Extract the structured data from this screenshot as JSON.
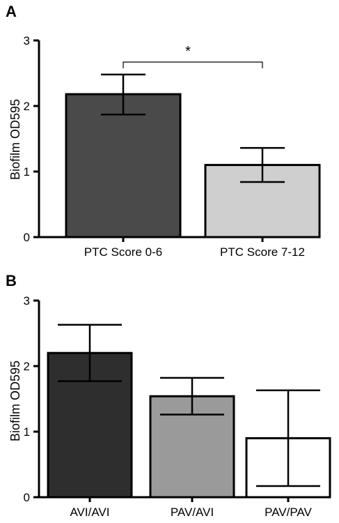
{
  "chart_data": [
    {
      "type": "bar",
      "panel": "A",
      "ylabel": "Biofilm OD595",
      "ylim": [
        0,
        3
      ],
      "yticks": [
        "0",
        "1",
        "2",
        "3"
      ],
      "categories": [
        "PTC Score 0-6",
        "PTC Score 7-12"
      ],
      "values": [
        2.18,
        1.1
      ],
      "error_low": [
        1.87,
        0.84
      ],
      "error_high": [
        2.48,
        1.36
      ],
      "colors": [
        "#4a4a4a",
        "#cfcfcf"
      ],
      "significance": {
        "from": 0,
        "to": 1,
        "label": "*"
      }
    },
    {
      "type": "bar",
      "panel": "B",
      "ylabel": "Biofilm OD595",
      "ylim": [
        0,
        3
      ],
      "yticks": [
        "0",
        "1",
        "2",
        "3"
      ],
      "categories": [
        "AVI/AVI",
        "PAV/AVI",
        "PAV/PAV"
      ],
      "values": [
        2.2,
        1.54,
        0.9
      ],
      "error_low": [
        1.77,
        1.26,
        0.17
      ],
      "error_high": [
        2.63,
        1.82,
        1.63
      ],
      "colors": [
        "#2e2e2e",
        "#9a9a9a",
        "#ffffff"
      ]
    }
  ]
}
